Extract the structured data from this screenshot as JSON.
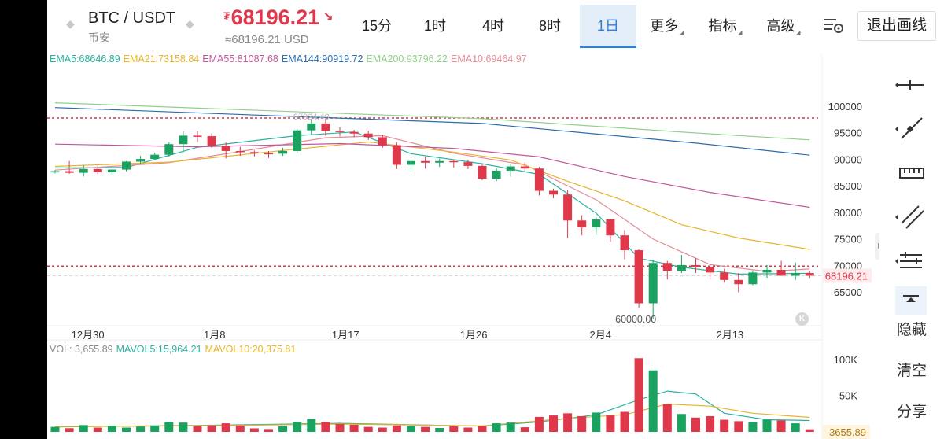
{
  "header": {
    "pair": "BTC / USDT",
    "exchange": "币安",
    "price": "68196.21",
    "currency_symbol": "₮",
    "price_usd": "≈68196.21 USD",
    "price_trend": "down"
  },
  "timeframes": [
    {
      "label": "15分",
      "active": false,
      "has_menu": false
    },
    {
      "label": "1时",
      "active": false,
      "has_menu": false
    },
    {
      "label": "4时",
      "active": false,
      "has_menu": false
    },
    {
      "label": "8时",
      "active": false,
      "has_menu": false
    },
    {
      "label": "1日",
      "active": true,
      "has_menu": false
    },
    {
      "label": "更多",
      "active": false,
      "has_menu": true
    },
    {
      "label": "指标",
      "active": false,
      "has_menu": true
    },
    {
      "label": "高级",
      "active": false,
      "has_menu": true
    }
  ],
  "exit_button": "退出画线",
  "ema_legend": [
    {
      "text": "EMA5:68646.89",
      "color": "#2bb3a0"
    },
    {
      "text": "EMA21:73158.84",
      "color": "#e9b32c"
    },
    {
      "text": "EMA55:81087.68",
      "color": "#c0579b"
    },
    {
      "text": "EMA144:90919.72",
      "color": "#2b6cb0"
    },
    {
      "text": "EMA200:93796.22",
      "color": "#93cf8c"
    },
    {
      "text": "EMA10:69464.97",
      "color": "#e58c96"
    }
  ],
  "vol_legend": [
    {
      "text": "VOL: 3,655.89",
      "color": "#888888"
    },
    {
      "text": "MAVOL5:15,964.21",
      "color": "#2bb3a0"
    },
    {
      "text": "MAVOL10:20,375.81",
      "color": "#e9b32c"
    }
  ],
  "toolbar": {
    "hide": "隐藏",
    "clear": "清空",
    "share": "分享"
  },
  "k_badge": "K",
  "chart_data": {
    "type": "candlestick",
    "colors": {
      "up": "#1aa260",
      "down": "#e0384b"
    },
    "price_axis": {
      "ticks": [
        100000,
        95000,
        90000,
        85000,
        80000,
        75000,
        70000,
        65000
      ],
      "range": [
        58500,
        102000
      ]
    },
    "volume_axis": {
      "ticks": [
        "100K",
        "50K"
      ],
      "range": [
        0,
        110000
      ]
    },
    "x_ticks": [
      "12月30",
      "1月8",
      "1月17",
      "1月26",
      "2月4",
      "2月13"
    ],
    "current_price_label": "68196.21",
    "current_volume_label": "3655.89",
    "low_marker": "60000.00",
    "high_marker": "97924.49",
    "horizontal_lines": [
      97924.49,
      70000
    ],
    "candles": [
      {
        "o": 87700,
        "h": 88100,
        "l": 87500,
        "c": 87900,
        "v": 7000
      },
      {
        "o": 87900,
        "h": 89800,
        "l": 87400,
        "c": 87600,
        "v": 5200
      },
      {
        "o": 87600,
        "h": 89000,
        "l": 86900,
        "c": 88300,
        "v": 9500
      },
      {
        "o": 88300,
        "h": 89000,
        "l": 87300,
        "c": 87700,
        "v": 6000
      },
      {
        "o": 87700,
        "h": 88200,
        "l": 87300,
        "c": 88200,
        "v": 8500
      },
      {
        "o": 88200,
        "h": 89800,
        "l": 87900,
        "c": 89700,
        "v": 6000
      },
      {
        "o": 89700,
        "h": 90800,
        "l": 89300,
        "c": 90200,
        "v": 7500
      },
      {
        "o": 90200,
        "h": 91400,
        "l": 90000,
        "c": 91000,
        "v": 9000
      },
      {
        "o": 91000,
        "h": 93300,
        "l": 90600,
        "c": 93000,
        "v": 14000
      },
      {
        "o": 93000,
        "h": 95400,
        "l": 91500,
        "c": 94600,
        "v": 13000
      },
      {
        "o": 94600,
        "h": 95400,
        "l": 93400,
        "c": 94500,
        "v": 8000
      },
      {
        "o": 94500,
        "h": 95000,
        "l": 92300,
        "c": 92700,
        "v": 9000
      },
      {
        "o": 92700,
        "h": 93300,
        "l": 90300,
        "c": 91700,
        "v": 12000
      },
      {
        "o": 91700,
        "h": 92500,
        "l": 90800,
        "c": 91500,
        "v": 9000
      },
      {
        "o": 91500,
        "h": 91800,
        "l": 90700,
        "c": 91300,
        "v": 5000
      },
      {
        "o": 91300,
        "h": 91700,
        "l": 90400,
        "c": 91200,
        "v": 4000
      },
      {
        "o": 91200,
        "h": 92300,
        "l": 90800,
        "c": 91700,
        "v": 8000
      },
      {
        "o": 91700,
        "h": 95900,
        "l": 91300,
        "c": 95600,
        "v": 14000
      },
      {
        "o": 95600,
        "h": 97800,
        "l": 94800,
        "c": 96900,
        "v": 18000
      },
      {
        "o": 96900,
        "h": 97900,
        "l": 94600,
        "c": 95500,
        "v": 14000
      },
      {
        "o": 95500,
        "h": 96200,
        "l": 94500,
        "c": 95300,
        "v": 11000
      },
      {
        "o": 95300,
        "h": 95700,
        "l": 94300,
        "c": 95000,
        "v": 10000
      },
      {
        "o": 95000,
        "h": 95500,
        "l": 93800,
        "c": 94300,
        "v": 7000
      },
      {
        "o": 94300,
        "h": 94800,
        "l": 92300,
        "c": 92800,
        "v": 6000
      },
      {
        "o": 92800,
        "h": 93300,
        "l": 88300,
        "c": 89100,
        "v": 9000
      },
      {
        "o": 89100,
        "h": 90200,
        "l": 87700,
        "c": 89800,
        "v": 8000
      },
      {
        "o": 89800,
        "h": 90600,
        "l": 88400,
        "c": 89500,
        "v": 7000
      },
      {
        "o": 89500,
        "h": 90300,
        "l": 88700,
        "c": 89800,
        "v": 5500
      },
      {
        "o": 89800,
        "h": 90000,
        "l": 88600,
        "c": 89600,
        "v": 8000
      },
      {
        "o": 89600,
        "h": 90000,
        "l": 88300,
        "c": 88900,
        "v": 6000
      },
      {
        "o": 88900,
        "h": 89300,
        "l": 86200,
        "c": 86500,
        "v": 8000
      },
      {
        "o": 86500,
        "h": 88400,
        "l": 86000,
        "c": 88000,
        "v": 12000
      },
      {
        "o": 88000,
        "h": 89200,
        "l": 86900,
        "c": 88800,
        "v": 13000
      },
      {
        "o": 88800,
        "h": 89600,
        "l": 87900,
        "c": 88400,
        "v": 6500
      },
      {
        "o": 88400,
        "h": 88700,
        "l": 83300,
        "c": 84200,
        "v": 21000
      },
      {
        "o": 84200,
        "h": 84600,
        "l": 82800,
        "c": 83500,
        "v": 23000
      },
      {
        "o": 83500,
        "h": 84400,
        "l": 75300,
        "c": 78600,
        "v": 26000
      },
      {
        "o": 78600,
        "h": 79600,
        "l": 75800,
        "c": 77300,
        "v": 22000
      },
      {
        "o": 77300,
        "h": 79300,
        "l": 75900,
        "c": 78800,
        "v": 27000
      },
      {
        "o": 78800,
        "h": 78900,
        "l": 74600,
        "c": 75800,
        "v": 23000
      },
      {
        "o": 75800,
        "h": 76800,
        "l": 71300,
        "c": 73000,
        "v": 28000
      },
      {
        "o": 73000,
        "h": 73200,
        "l": 62200,
        "c": 63000,
        "v": 103000
      },
      {
        "o": 63000,
        "h": 71200,
        "l": 60000,
        "c": 70600,
        "v": 86000
      },
      {
        "o": 70600,
        "h": 71000,
        "l": 67500,
        "c": 69100,
        "v": 39000
      },
      {
        "o": 69100,
        "h": 72100,
        "l": 68700,
        "c": 70200,
        "v": 25000
      },
      {
        "o": 70200,
        "h": 71500,
        "l": 68700,
        "c": 69800,
        "v": 20000
      },
      {
        "o": 69800,
        "h": 70500,
        "l": 67500,
        "c": 68800,
        "v": 22000
      },
      {
        "o": 68800,
        "h": 69500,
        "l": 66900,
        "c": 67400,
        "v": 17000
      },
      {
        "o": 67400,
        "h": 68700,
        "l": 65100,
        "c": 66600,
        "v": 15000
      },
      {
        "o": 66600,
        "h": 69200,
        "l": 66400,
        "c": 68800,
        "v": 14000
      },
      {
        "o": 68800,
        "h": 70200,
        "l": 67800,
        "c": 69300,
        "v": 17000
      },
      {
        "o": 69300,
        "h": 71000,
        "l": 68400,
        "c": 68200,
        "v": 16000
      },
      {
        "o": 68200,
        "h": 70700,
        "l": 67400,
        "c": 68700,
        "v": 12000
      },
      {
        "o": 68700,
        "h": 69100,
        "l": 67800,
        "c": 68196.21,
        "v": 3655.89
      }
    ],
    "ma_series": [
      {
        "name": "EMA5",
        "color": "#2bb3a0",
        "values": [
          [
            0,
            88500
          ],
          [
            5,
            88600
          ],
          [
            10,
            92400
          ],
          [
            17,
            94600
          ],
          [
            21,
            95300
          ],
          [
            25,
            91200
          ],
          [
            30,
            89300
          ],
          [
            34,
            87300
          ],
          [
            38,
            80000
          ],
          [
            41,
            71500
          ],
          [
            44,
            69800
          ],
          [
            48,
            68500
          ],
          [
            53,
            68646.89
          ]
        ]
      },
      {
        "name": "EMA10",
        "color": "#e58c96",
        "values": [
          [
            0,
            88100
          ],
          [
            8,
            89500
          ],
          [
            13,
            91600
          ],
          [
            19,
            94200
          ],
          [
            23,
            94600
          ],
          [
            28,
            91300
          ],
          [
            33,
            89100
          ],
          [
            38,
            82500
          ],
          [
            42,
            75100
          ],
          [
            46,
            70300
          ],
          [
            50,
            69000
          ],
          [
            53,
            69464.97
          ]
        ]
      },
      {
        "name": "EMA21",
        "color": "#e9b32c",
        "values": [
          [
            0,
            88800
          ],
          [
            8,
            89600
          ],
          [
            16,
            91800
          ],
          [
            22,
            93400
          ],
          [
            28,
            91500
          ],
          [
            32,
            90000
          ],
          [
            36,
            86000
          ],
          [
            40,
            82300
          ],
          [
            44,
            77800
          ],
          [
            48,
            75300
          ],
          [
            53,
            73158.84
          ]
        ]
      },
      {
        "name": "EMA55",
        "color": "#c0579b",
        "values": [
          [
            0,
            93000
          ],
          [
            10,
            92500
          ],
          [
            20,
            93100
          ],
          [
            28,
            92200
          ],
          [
            34,
            90600
          ],
          [
            40,
            86900
          ],
          [
            46,
            83900
          ],
          [
            53,
            81087.68
          ]
        ]
      },
      {
        "name": "EMA144",
        "color": "#2b6cb0",
        "values": [
          [
            0,
            99900
          ],
          [
            15,
            98400
          ],
          [
            30,
            96900
          ],
          [
            45,
            93200
          ],
          [
            53,
            90919.72
          ]
        ]
      },
      {
        "name": "EMA200",
        "color": "#93cf8c",
        "values": [
          [
            0,
            100800
          ],
          [
            15,
            99300
          ],
          [
            30,
            97800
          ],
          [
            45,
            95100
          ],
          [
            53,
            93796.22
          ]
        ]
      },
      {
        "name": "MAVOL5",
        "color": "#2bb3a0",
        "pane": "volume",
        "values": [
          [
            0,
            7000
          ],
          [
            10,
            9000
          ],
          [
            20,
            12000
          ],
          [
            30,
            8000
          ],
          [
            34,
            14000
          ],
          [
            38,
            24000
          ],
          [
            41,
            45000
          ],
          [
            43,
            57000
          ],
          [
            45,
            53000
          ],
          [
            47,
            26000
          ],
          [
            50,
            17000
          ],
          [
            53,
            15964.21
          ]
        ]
      },
      {
        "name": "MAVOL10",
        "color": "#e9b32c",
        "pane": "volume",
        "values": [
          [
            0,
            7500
          ],
          [
            10,
            8500
          ],
          [
            20,
            11000
          ],
          [
            30,
            8500
          ],
          [
            36,
            19000
          ],
          [
            40,
            24000
          ],
          [
            43,
            39000
          ],
          [
            46,
            36000
          ],
          [
            49,
            26000
          ],
          [
            53,
            20375.81
          ]
        ]
      }
    ]
  }
}
